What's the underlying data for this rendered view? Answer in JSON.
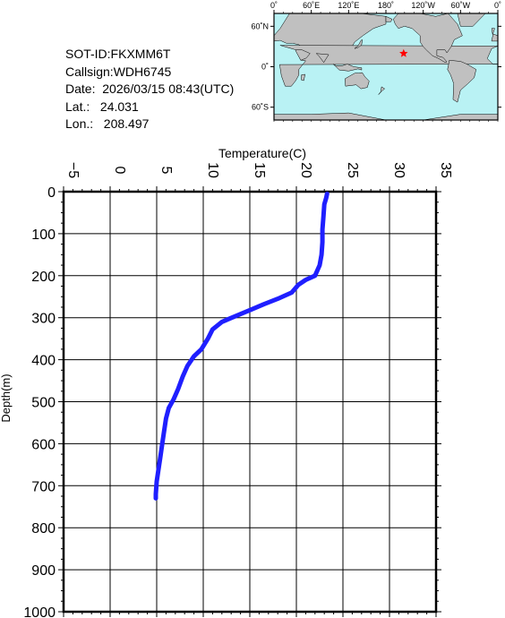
{
  "info": {
    "sot_id": "SOT-ID:FKXMM6T",
    "callsign": "Callsign:WDH6745",
    "date": "Date:  2026/03/15 08:43(UTC)",
    "lat": "Lat.:   24.031",
    "lon": "Lon.:   208.497"
  },
  "map": {
    "top_labels": [
      "0˚",
      "60˚E",
      "120˚E",
      "180˚",
      "120˚W",
      "60˚W",
      "0˚"
    ],
    "left_labels": [
      "60˚N",
      "0˚",
      "60˚S"
    ],
    "marker_lat": 24.031,
    "marker_lon": 208.497,
    "ocean_color": "#b9f2f4",
    "land_color": "#c0c0c0",
    "marker_color": "#ff0000"
  },
  "chart_data": {
    "type": "line",
    "xlabel": "Temperature(C)",
    "ylabel": "Depth(m)",
    "xlim": [
      -5,
      35
    ],
    "ylim": [
      0,
      1000
    ],
    "x_ticks": [
      -5,
      0,
      5,
      10,
      15,
      20,
      25,
      30,
      35
    ],
    "y_ticks": [
      0,
      100,
      200,
      300,
      400,
      500,
      600,
      700,
      800,
      900,
      1000
    ],
    "grid": true,
    "line_color": "#1f1fff",
    "series": [
      {
        "name": "",
        "points": [
          [
            23.3,
            5
          ],
          [
            23.2,
            15
          ],
          [
            23.0,
            30
          ],
          [
            22.9,
            60
          ],
          [
            22.8,
            90
          ],
          [
            22.8,
            120
          ],
          [
            22.7,
            150
          ],
          [
            22.5,
            175
          ],
          [
            22.0,
            200
          ],
          [
            21.0,
            210
          ],
          [
            20.2,
            222
          ],
          [
            19.5,
            240
          ],
          [
            18.0,
            255
          ],
          [
            16.5,
            268
          ],
          [
            15.0,
            282
          ],
          [
            13.5,
            296
          ],
          [
            12.0,
            310
          ],
          [
            11.0,
            328
          ],
          [
            10.5,
            350
          ],
          [
            9.8,
            375
          ],
          [
            9.0,
            392
          ],
          [
            8.3,
            415
          ],
          [
            7.8,
            440
          ],
          [
            7.3,
            470
          ],
          [
            6.8,
            495
          ],
          [
            6.3,
            515
          ],
          [
            6.0,
            540
          ],
          [
            5.8,
            570
          ],
          [
            5.6,
            600
          ],
          [
            5.4,
            630
          ],
          [
            5.2,
            660
          ],
          [
            5.0,
            690
          ],
          [
            4.9,
            720
          ],
          [
            4.9,
            730
          ]
        ]
      }
    ]
  }
}
